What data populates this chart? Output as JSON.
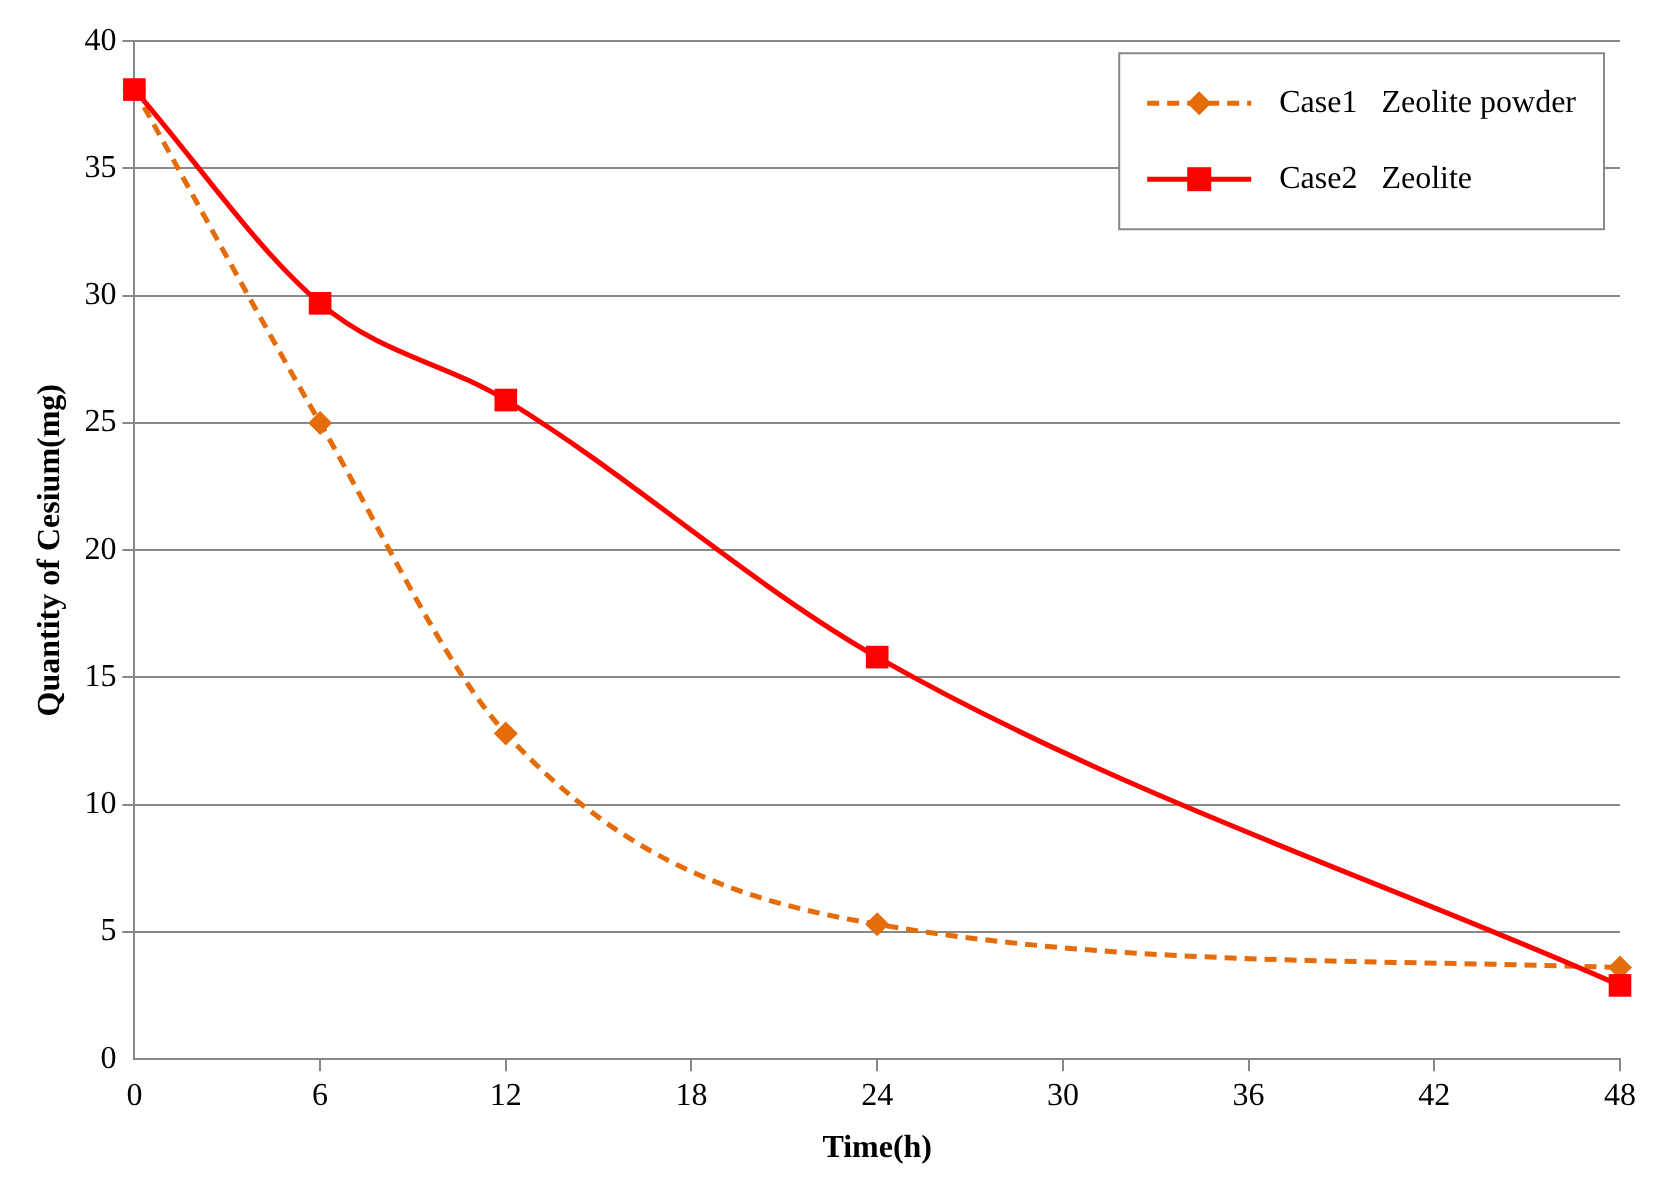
{
  "chart_data": {
    "type": "line",
    "xlabel": "Time(h)",
    "ylabel": "Quantity of Cesium(mg)",
    "x": [
      0,
      6,
      12,
      24,
      48
    ],
    "series": [
      {
        "name": "Case1   Zeolite powder",
        "color": "#e46c0a",
        "values": [
          38.1,
          25,
          12.8,
          5.3,
          3.6
        ],
        "marker": "diamond",
        "line_style": "dashed"
      },
      {
        "name": "Case2   Zeolite",
        "color": "#ff0000",
        "values": [
          38.1,
          29.7,
          25.9,
          15.8,
          2.9
        ],
        "marker": "square",
        "line_style": "solid"
      }
    ],
    "xlim": [
      0,
      48
    ],
    "xticks": [
      0,
      6,
      12,
      18,
      24,
      30,
      36,
      42,
      48
    ],
    "ylim": [
      0,
      40
    ],
    "yticks": [
      0,
      5,
      10,
      15,
      20,
      25,
      30,
      35,
      40
    ],
    "grid": "y",
    "legend": "top right"
  }
}
